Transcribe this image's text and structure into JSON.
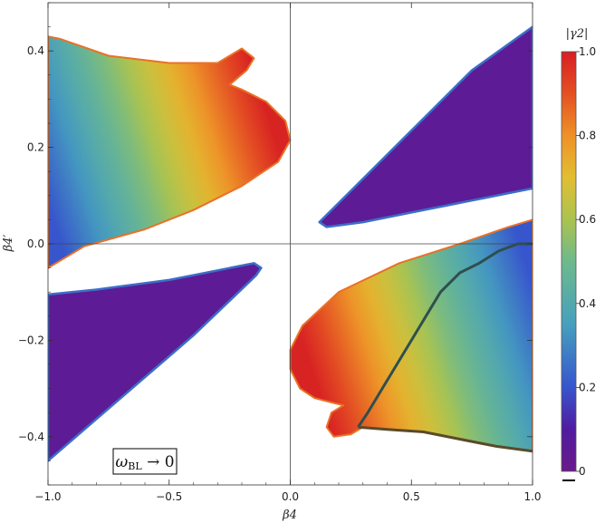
{
  "chart_data": {
    "type": "heatmap",
    "xlabel": "β4",
    "ylabel": "β4′",
    "xlim": [
      -1.0,
      1.0
    ],
    "ylim": [
      -0.5,
      0.5
    ],
    "x_ticks": [
      {
        "value": -1.0,
        "label": "−1.0"
      },
      {
        "value": -0.5,
        "label": "−0.5"
      },
      {
        "value": 0.0,
        "label": "0.0"
      },
      {
        "value": 0.5,
        "label": "0.5"
      },
      {
        "value": 1.0,
        "label": "1.0"
      }
    ],
    "y_ticks": [
      {
        "value": 0.4,
        "label": "0.4"
      },
      {
        "value": 0.2,
        "label": "0.2"
      },
      {
        "value": 0.0,
        "label": "0.0"
      },
      {
        "value": -0.2,
        "label": "−0.2"
      },
      {
        "value": -0.4,
        "label": "−0.4"
      }
    ],
    "colorbar": {
      "title": "|γ2|",
      "range": [
        0,
        1
      ],
      "ticks": [
        {
          "value": 0,
          "label": "0"
        },
        {
          "value": 0.2,
          "label": "0.2"
        },
        {
          "value": 0.4,
          "label": "0.4"
        },
        {
          "value": 0.6,
          "label": "0.6"
        },
        {
          "value": 0.8,
          "label": "0.8"
        },
        {
          "value": 1.0,
          "label": "1.0"
        }
      ]
    },
    "annotation": {
      "text": "ωBL → 0",
      "main": "ω",
      "sub": "BL",
      "rest": " → 0"
    },
    "regions": [
      {
        "name": "upper-left-gradient",
        "polygon": [
          [
            -1.0,
            -0.05
          ],
          [
            -0.85,
            -0.005
          ],
          [
            -0.6,
            0.03
          ],
          [
            -0.4,
            0.07
          ],
          [
            -0.2,
            0.12
          ],
          [
            -0.05,
            0.17
          ],
          [
            0.0,
            0.215
          ],
          [
            -0.02,
            0.255
          ],
          [
            -0.1,
            0.295
          ],
          [
            -0.2,
            0.32
          ],
          [
            -0.25,
            0.33
          ],
          [
            -0.18,
            0.36
          ],
          [
            -0.15,
            0.385
          ],
          [
            -0.2,
            0.405
          ],
          [
            -0.3,
            0.375
          ],
          [
            -0.5,
            0.375
          ],
          [
            -0.75,
            0.39
          ],
          [
            -0.95,
            0.425
          ],
          [
            -1.0,
            0.43
          ]
        ],
        "stops": [
          {
            "point": [
              -0.98,
              0.05
            ],
            "value": 0.2
          },
          {
            "point": [
              -0.05,
              0.2
            ],
            "value": 0.99
          }
        ]
      },
      {
        "name": "upper-right-purple",
        "polygon": [
          [
            0.12,
            0.045
          ],
          [
            0.15,
            0.06
          ],
          [
            0.45,
            0.21
          ],
          [
            0.75,
            0.36
          ],
          [
            1.0,
            0.45
          ],
          [
            1.0,
            0.115
          ],
          [
            0.8,
            0.095
          ],
          [
            0.5,
            0.065
          ],
          [
            0.3,
            0.045
          ],
          [
            0.15,
            0.035
          ]
        ],
        "value": 0.05,
        "edge_value": 0.25
      },
      {
        "name": "lower-left-purple",
        "polygon": [
          [
            -1.0,
            -0.105
          ],
          [
            -0.8,
            -0.095
          ],
          [
            -0.5,
            -0.075
          ],
          [
            -0.3,
            -0.055
          ],
          [
            -0.15,
            -0.04
          ],
          [
            -0.12,
            -0.05
          ],
          [
            -0.14,
            -0.065
          ],
          [
            -0.4,
            -0.19
          ],
          [
            -0.7,
            -0.32
          ],
          [
            -1.0,
            -0.45
          ]
        ],
        "value": 0.05,
        "edge_value": 0.25
      },
      {
        "name": "lower-right-gradient",
        "polygon": [
          [
            0.0,
            -0.22
          ],
          [
            0.05,
            -0.17
          ],
          [
            0.2,
            -0.1
          ],
          [
            0.45,
            -0.04
          ],
          [
            0.7,
            0.0
          ],
          [
            0.9,
            0.035
          ],
          [
            1.0,
            0.05
          ],
          [
            1.0,
            -0.43
          ],
          [
            0.85,
            -0.42
          ],
          [
            0.7,
            -0.405
          ],
          [
            0.55,
            -0.39
          ],
          [
            0.4,
            -0.385
          ],
          [
            0.3,
            -0.38
          ],
          [
            0.25,
            -0.395
          ],
          [
            0.18,
            -0.4
          ],
          [
            0.15,
            -0.38
          ],
          [
            0.17,
            -0.35
          ],
          [
            0.22,
            -0.335
          ],
          [
            0.18,
            -0.33
          ],
          [
            0.1,
            -0.32
          ],
          [
            0.04,
            -0.3
          ],
          [
            0.0,
            -0.26
          ]
        ],
        "stops": [
          {
            "point": [
              0.05,
              -0.2
            ],
            "value": 0.99
          },
          {
            "point": [
              0.98,
              -0.05
            ],
            "value": 0.2
          }
        ]
      }
    ],
    "dark_curve": [
      [
        0.28,
        -0.38
      ],
      [
        0.32,
        -0.35
      ],
      [
        0.38,
        -0.3
      ],
      [
        0.44,
        -0.25
      ],
      [
        0.5,
        -0.2
      ],
      [
        0.56,
        -0.15
      ],
      [
        0.62,
        -0.1
      ],
      [
        0.7,
        -0.06
      ],
      [
        0.78,
        -0.04
      ],
      [
        0.86,
        -0.015
      ],
      [
        0.94,
        0.0
      ],
      [
        1.0,
        0.0
      ]
    ],
    "dark_edge": [
      [
        0.28,
        -0.38
      ],
      [
        0.4,
        -0.385
      ],
      [
        0.55,
        -0.39
      ],
      [
        0.7,
        -0.405
      ],
      [
        0.85,
        -0.42
      ],
      [
        1.0,
        -0.43
      ]
    ]
  }
}
